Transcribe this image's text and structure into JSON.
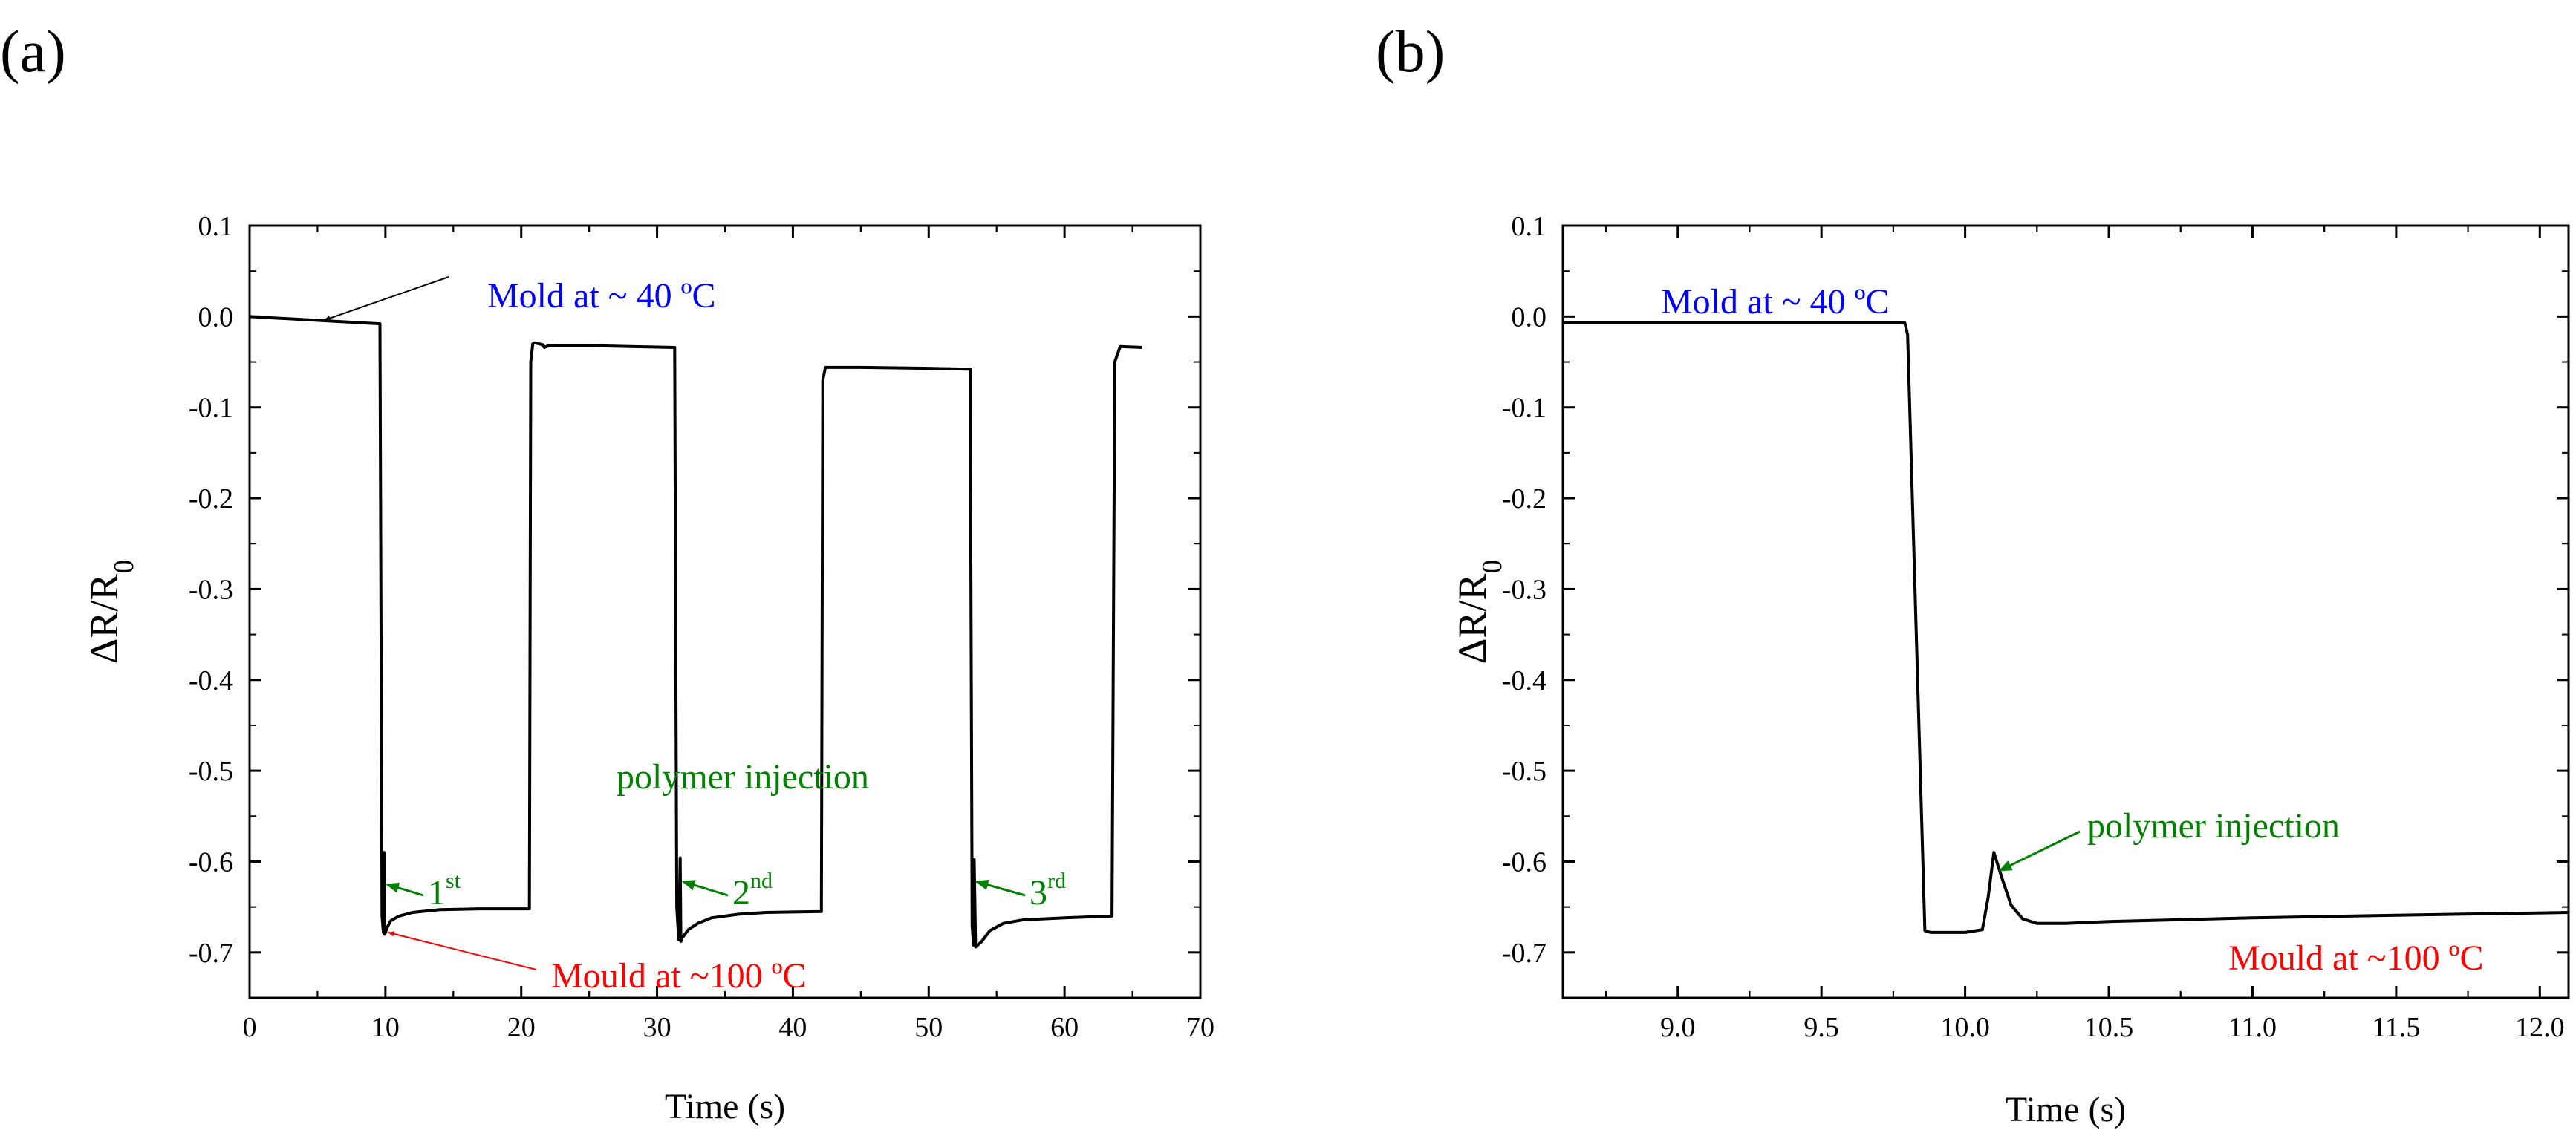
{
  "figure": {
    "panel_labels": [
      "(a)",
      "(b)"
    ]
  },
  "colors": {
    "line": "#000000",
    "blue": "#0000ff",
    "red": "#ff0000",
    "green": "#008000"
  },
  "chart_data": [
    {
      "type": "line",
      "panel": "(a)",
      "title": "",
      "xlabel": "Time (s)",
      "ylabel_main": "ΔR/R",
      "ylabel_sub": "0",
      "xlim": [
        0,
        70
      ],
      "ylim": [
        -0.75,
        0.1
      ],
      "xticks": [
        0,
        10,
        20,
        30,
        40,
        50,
        60,
        70
      ],
      "xtick_labels": [
        "0",
        "10",
        "20",
        "30",
        "40",
        "50",
        "60",
        "70"
      ],
      "yticks": [
        0.1,
        0.0,
        -0.1,
        -0.2,
        -0.3,
        -0.4,
        -0.5,
        -0.6,
        -0.7
      ],
      "ytick_labels": [
        "0.1",
        "0.0",
        "-0.1",
        "-0.2",
        "-0.3",
        "-0.4",
        "-0.5",
        "-0.6",
        "-0.7"
      ],
      "series": [
        {
          "name": "ΔR/R0",
          "x": [
            0,
            9.6,
            9.75,
            9.85,
            9.9,
            9.95,
            10.0,
            10.15,
            10.4,
            11,
            12,
            14,
            17,
            20.6,
            20.7,
            20.85,
            21,
            21.6,
            21.7,
            22,
            25,
            28,
            31.3,
            31.45,
            31.6,
            31.7,
            31.75,
            31.85,
            32.3,
            33,
            34,
            36,
            38,
            42.1,
            42.2,
            42.4,
            45,
            50,
            52.9,
            53.05,
            53.2,
            53.3,
            53.35,
            53.45,
            53.9,
            54.5,
            55.5,
            57,
            60,
            63.4,
            63.5,
            63.7,
            64.1,
            65.7
          ],
          "y": [
            0.0,
            -0.008,
            -0.66,
            -0.678,
            -0.59,
            -0.68,
            -0.678,
            -0.672,
            -0.665,
            -0.66,
            -0.656,
            -0.653,
            -0.652,
            -0.652,
            -0.05,
            -0.03,
            -0.029,
            -0.031,
            -0.034,
            -0.032,
            -0.032,
            -0.033,
            -0.034,
            -0.65,
            -0.686,
            -0.596,
            -0.688,
            -0.684,
            -0.675,
            -0.668,
            -0.662,
            -0.658,
            -0.656,
            -0.655,
            -0.07,
            -0.056,
            -0.056,
            -0.057,
            -0.058,
            -0.058,
            -0.67,
            -0.692,
            -0.598,
            -0.694,
            -0.688,
            -0.676,
            -0.668,
            -0.664,
            -0.662,
            -0.66,
            -0.66,
            -0.05,
            -0.033,
            -0.034
          ]
        }
      ],
      "annotations": [
        {
          "text": "Mold at ~ 40 ºC",
          "color": "blue"
        },
        {
          "text": "polymer injection",
          "color": "green"
        },
        {
          "text": "Mould at ~100 ºC",
          "color": "red"
        },
        {
          "text": "1",
          "sup": "st",
          "color": "green"
        },
        {
          "text": "2",
          "sup": "nd",
          "color": "green"
        },
        {
          "text": "3",
          "sup": "rd",
          "color": "green"
        }
      ],
      "arrow_targets": [
        {
          "color": "black",
          "x": 5.5,
          "y": -0.004
        },
        {
          "color": "red",
          "x": 10.2,
          "y": -0.678
        },
        {
          "color": "green",
          "x": 10.1,
          "y": -0.625
        },
        {
          "color": "green",
          "x": 31.9,
          "y": -0.622
        },
        {
          "color": "green",
          "x": 53.5,
          "y": -0.622
        }
      ]
    },
    {
      "type": "line",
      "panel": "(b)",
      "title": "",
      "xlabel": "Time (s)",
      "ylabel_main": "ΔR/R",
      "ylabel_sub": "0",
      "xlim": [
        8.6,
        12.1
      ],
      "ylim": [
        -0.75,
        0.1
      ],
      "xticks": [
        9.0,
        9.5,
        10.0,
        10.5,
        11.0,
        11.5,
        12.0
      ],
      "xtick_labels": [
        "9.0",
        "9.5",
        "10.0",
        "10.5",
        "11.0",
        "11.5",
        "12.0"
      ],
      "yticks": [
        0.1,
        0.0,
        -0.1,
        -0.2,
        -0.3,
        -0.4,
        -0.5,
        -0.6,
        -0.7
      ],
      "ytick_labels": [
        "0.1",
        "0.0",
        "-0.1",
        "-0.2",
        "-0.3",
        "-0.4",
        "-0.5",
        "-0.6",
        "-0.7"
      ],
      "series": [
        {
          "name": "ΔR/R0",
          "x": [
            8.6,
            9.79,
            9.8,
            9.86,
            9.88,
            10.0,
            10.06,
            10.08,
            10.1,
            10.13,
            10.16,
            10.2,
            10.25,
            10.35,
            10.5,
            11.0,
            11.5,
            12.1
          ],
          "y": [
            -0.007,
            -0.007,
            -0.02,
            -0.676,
            -0.678,
            -0.678,
            -0.675,
            -0.64,
            -0.59,
            -0.62,
            -0.648,
            -0.663,
            -0.668,
            -0.668,
            -0.666,
            -0.662,
            -0.659,
            -0.656
          ]
        }
      ],
      "annotations": [
        {
          "text": "Mold at ~ 40 ºC",
          "color": "blue"
        },
        {
          "text": "polymer injection",
          "color": "green"
        },
        {
          "text": "Mould at ~100 ºC",
          "color": "red"
        }
      ],
      "arrow_targets": [
        {
          "color": "green",
          "x": 10.12,
          "y": -0.61
        }
      ]
    }
  ]
}
